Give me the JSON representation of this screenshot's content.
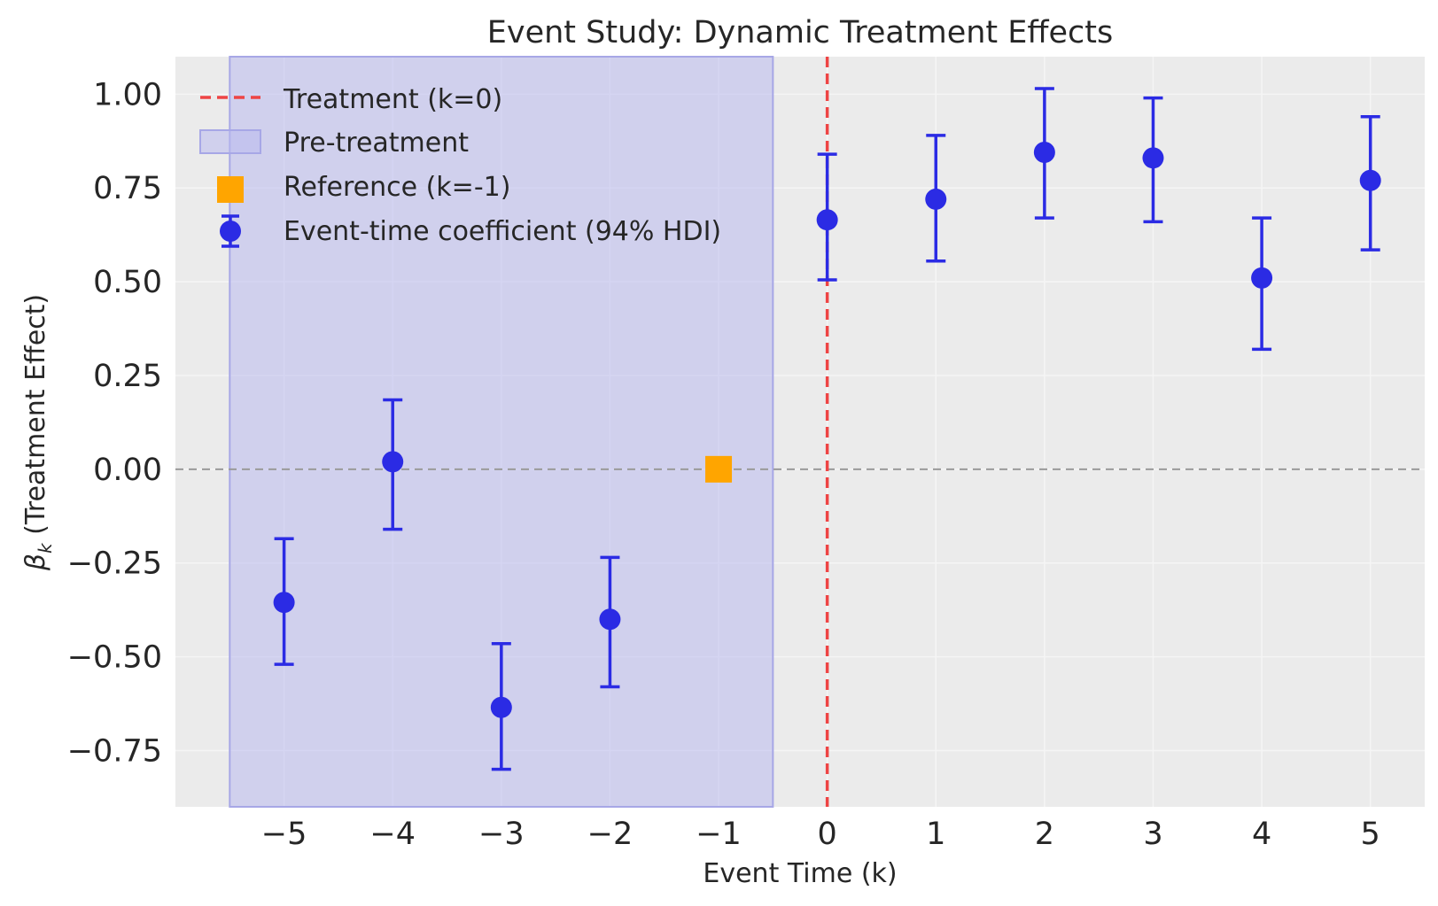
{
  "chart_data": {
    "type": "scatter",
    "title": "Event Study: Dynamic Treatment Effects",
    "xlabel": "Event Time (k)",
    "ylabel": "β_k (Treatment Effect)",
    "ylabel_parts": {
      "symbol": "β",
      "subscript": "k",
      "rest": " (Treatment Effect)"
    },
    "xlim": [
      -6,
      5.5
    ],
    "ylim": [
      -0.9,
      1.1
    ],
    "x_ticks": [
      -5,
      -4,
      -3,
      -2,
      -1,
      0,
      1,
      2,
      3,
      4,
      5
    ],
    "x_tick_labels": [
      "−5",
      "−4",
      "−3",
      "−2",
      "−1",
      "0",
      "1",
      "2",
      "3",
      "4",
      "5"
    ],
    "y_ticks": [
      1.0,
      0.75,
      0.5,
      0.25,
      0.0,
      -0.25,
      -0.5,
      -0.75
    ],
    "y_tick_labels": [
      "1.00",
      "0.75",
      "0.50",
      "0.25",
      "0.00",
      "−0.25",
      "−0.50",
      "−0.75"
    ],
    "grid": true,
    "legend_position": "top-left",
    "pre_treatment_span": [
      -5.5,
      -0.5
    ],
    "treatment_line_x": 0,
    "zero_line_y": 0,
    "reference": {
      "x": -1,
      "y": 0.0
    },
    "series": [
      {
        "name": "Event-time coefficient (94% HDI)",
        "points": [
          {
            "k": -5,
            "mean": -0.355,
            "lower": -0.52,
            "upper": -0.185
          },
          {
            "k": -4,
            "mean": 0.02,
            "lower": -0.16,
            "upper": 0.185
          },
          {
            "k": -3,
            "mean": -0.635,
            "lower": -0.8,
            "upper": -0.465
          },
          {
            "k": -2,
            "mean": -0.4,
            "lower": -0.58,
            "upper": -0.235
          },
          {
            "k": 0,
            "mean": 0.665,
            "lower": 0.505,
            "upper": 0.84
          },
          {
            "k": 1,
            "mean": 0.72,
            "lower": 0.555,
            "upper": 0.89
          },
          {
            "k": 2,
            "mean": 0.845,
            "lower": 0.67,
            "upper": 1.015
          },
          {
            "k": 3,
            "mean": 0.83,
            "lower": 0.66,
            "upper": 0.99
          },
          {
            "k": 4,
            "mean": 0.51,
            "lower": 0.32,
            "upper": 0.67
          },
          {
            "k": 5,
            "mean": 0.77,
            "lower": 0.585,
            "upper": 0.94
          }
        ]
      }
    ],
    "legend": [
      {
        "label": "Treatment (k=0)",
        "kind": "dashed-line"
      },
      {
        "label": "Pre-treatment",
        "kind": "patch"
      },
      {
        "label": "Reference (k=-1)",
        "kind": "square"
      },
      {
        "label": "Event-time coefficient (94% HDI)",
        "kind": "errorbar"
      }
    ],
    "colors": {
      "axes_bg": "#ebebeb",
      "grid": "#f5f5f5",
      "pre_treatment_fill": "#b9b9ee",
      "pre_treatment_edge": "#a7a7e6",
      "treatment_line": "#ee4444",
      "zero_line": "#9a9a9a",
      "points": "#2b2be4",
      "reference": "#ffa500"
    }
  }
}
